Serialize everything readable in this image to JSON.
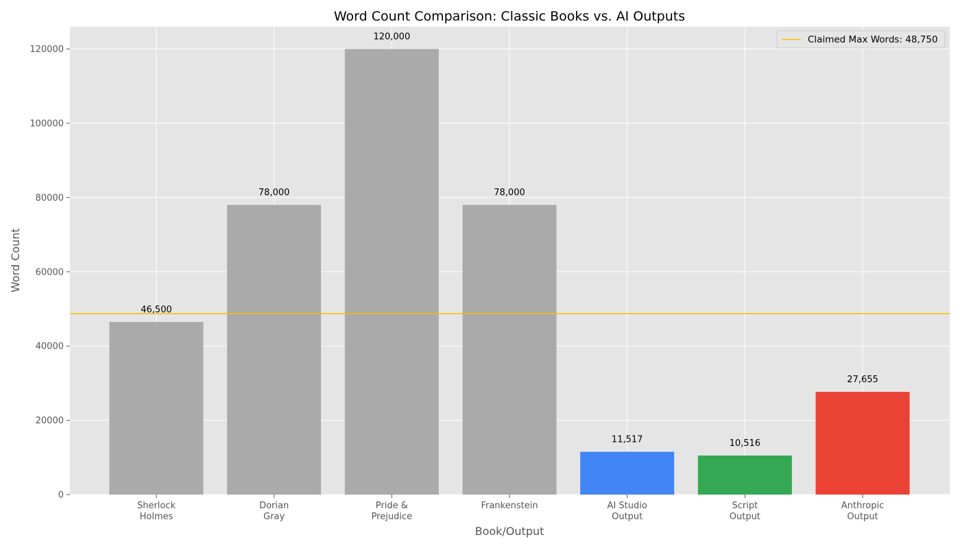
{
  "chart_data": {
    "type": "bar",
    "title": "Word Count Comparison: Classic Books vs. AI Outputs",
    "xlabel": "Book/Output",
    "ylabel": "Word Count",
    "ylim": [
      0,
      126000
    ],
    "yticks": [
      0,
      20000,
      40000,
      60000,
      80000,
      100000,
      120000
    ],
    "grid": true,
    "categories": [
      [
        "Sherlock",
        "Holmes"
      ],
      [
        "Dorian",
        "Gray"
      ],
      [
        "Pride &",
        "Prejudice"
      ],
      [
        "Frankenstein"
      ],
      [
        "AI Studio",
        "Output"
      ],
      [
        "Script",
        "Output"
      ],
      [
        "Anthropic",
        "Output"
      ]
    ],
    "values": [
      46500,
      78000,
      120000,
      78000,
      11517,
      10516,
      27655
    ],
    "value_labels": [
      "46,500",
      "78,000",
      "120,000",
      "78,000",
      "11,517",
      "10,516",
      "27,655"
    ],
    "bar_colors": [
      "#aaaaaa",
      "#aaaaaa",
      "#aaaaaa",
      "#aaaaaa",
      "#4285f4",
      "#34a853",
      "#ea4335"
    ],
    "reference_line": {
      "value": 48750,
      "label": "Claimed Max Words: 48,750",
      "color": "#fbbc05"
    },
    "legend_position": "upper right",
    "plot_background": "#e5e5e5",
    "grid_color": "#ffffff"
  }
}
